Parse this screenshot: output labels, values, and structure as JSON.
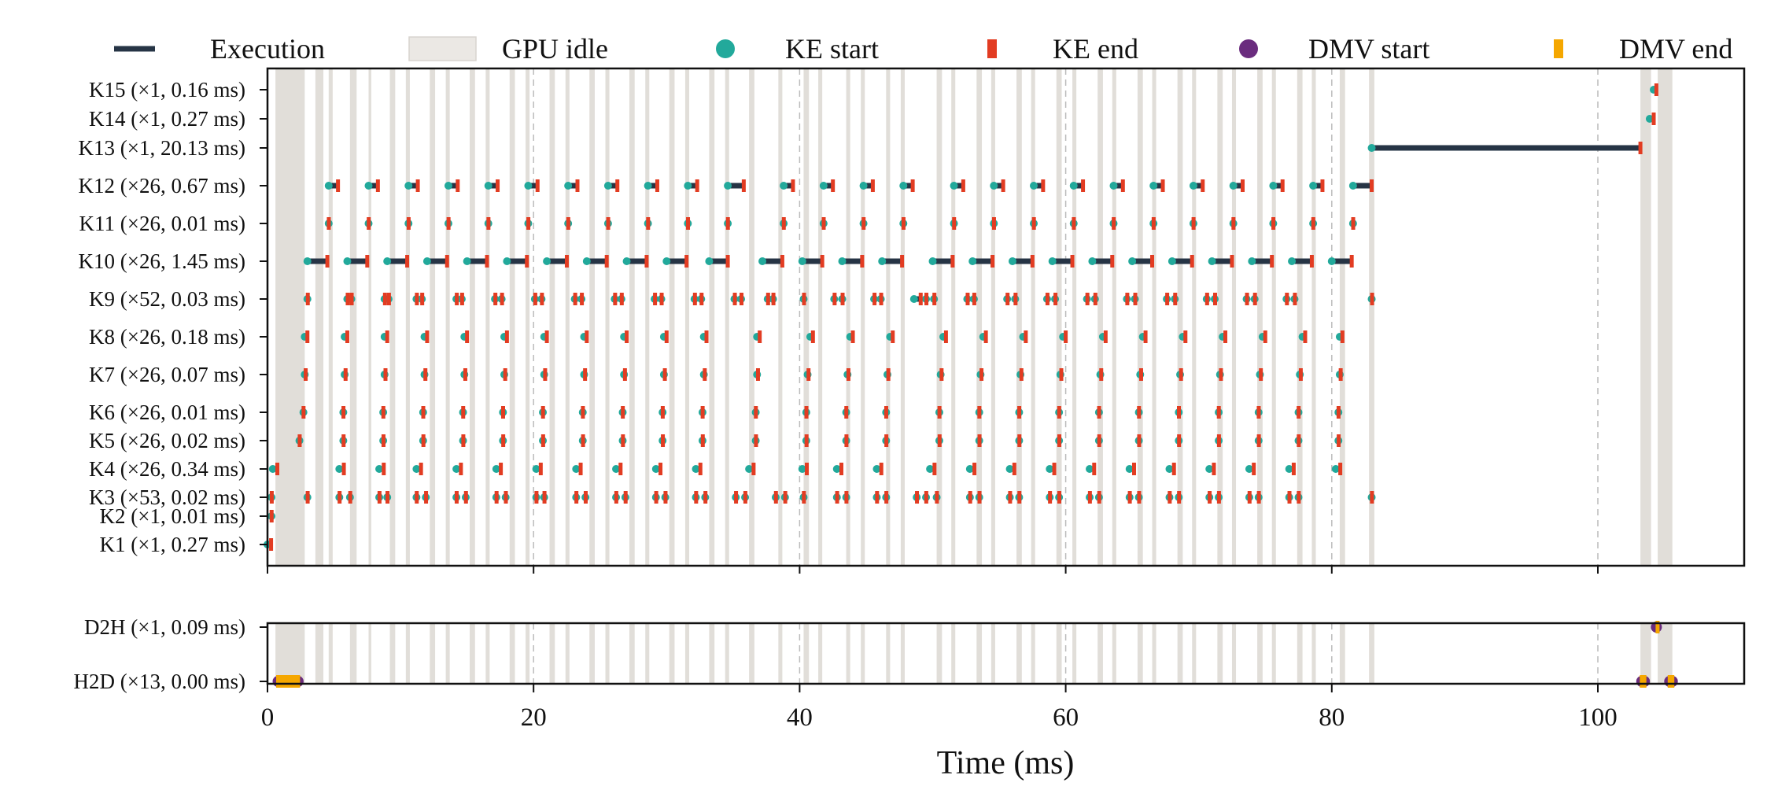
{
  "chart_data": {
    "type": "timeline",
    "xlabel": "Time (ms)",
    "xlim": [
      0,
      111
    ],
    "xticks": [
      0,
      20,
      40,
      60,
      80,
      100
    ],
    "grid": "vertical dashed at x ticks",
    "colors": {
      "execution": "#263445",
      "idle": "#dcd8d2",
      "idle_legend": "#ebe8e4",
      "ke_start": "#22a99b",
      "ke_end": "#e23c22",
      "dmv_start": "#6a2c7e",
      "dmv_end": "#f5a700",
      "axis": "#111111",
      "grid": "#bbbbbb"
    },
    "legend": {
      "location": "top",
      "items": [
        {
          "key": "execution",
          "label": "Execution",
          "marker": "line"
        },
        {
          "key": "idle",
          "label": "GPU idle",
          "marker": "patch"
        },
        {
          "key": "ke_start",
          "label": "KE start",
          "marker": "circle"
        },
        {
          "key": "ke_end",
          "label": "KE end",
          "marker": "bar"
        },
        {
          "key": "dmv_start",
          "label": "DMV start",
          "marker": "circle"
        },
        {
          "key": "dmv_end",
          "label": "DMV end",
          "marker": "bar"
        }
      ]
    },
    "idle_intervals_ms": [
      [
        0.6,
        2.8
      ],
      [
        3.6,
        4.2
      ],
      [
        4.6,
        4.9
      ],
      [
        6.2,
        6.7
      ],
      [
        7.6,
        7.8
      ],
      [
        9.2,
        9.6
      ],
      [
        10.4,
        10.7
      ],
      [
        12.2,
        12.6
      ],
      [
        13.4,
        13.7
      ],
      [
        15.2,
        15.6
      ],
      [
        16.4,
        16.7
      ],
      [
        18.2,
        18.6
      ],
      [
        19.4,
        19.7
      ],
      [
        21.2,
        21.6
      ],
      [
        22.4,
        22.7
      ],
      [
        24.2,
        24.6
      ],
      [
        25.4,
        25.7
      ],
      [
        27.2,
        27.6
      ],
      [
        28.4,
        28.7
      ],
      [
        30.2,
        30.6
      ],
      [
        31.4,
        31.7
      ],
      [
        33.2,
        33.6
      ],
      [
        34.4,
        34.7
      ],
      [
        36.2,
        36.6
      ],
      [
        38.4,
        38.7
      ],
      [
        40.3,
        40.7
      ],
      [
        41.4,
        41.7
      ],
      [
        43.5,
        43.8
      ],
      [
        44.6,
        44.9
      ],
      [
        46.5,
        46.8
      ],
      [
        47.6,
        47.9
      ],
      [
        50.3,
        50.7
      ],
      [
        51.4,
        51.7
      ],
      [
        53.3,
        53.7
      ],
      [
        54.4,
        54.7
      ],
      [
        56.3,
        56.7
      ],
      [
        57.4,
        57.7
      ],
      [
        59.3,
        59.7
      ],
      [
        60.5,
        60.8
      ],
      [
        62.4,
        62.8
      ],
      [
        63.5,
        63.8
      ],
      [
        65.4,
        65.8
      ],
      [
        66.5,
        66.8
      ],
      [
        68.4,
        68.8
      ],
      [
        69.5,
        69.8
      ],
      [
        71.4,
        71.8
      ],
      [
        72.5,
        72.8
      ],
      [
        74.4,
        74.8
      ],
      [
        75.5,
        75.8
      ],
      [
        77.4,
        77.8
      ],
      [
        78.5,
        78.8
      ],
      [
        80.6,
        81.0
      ],
      [
        82.8,
        83.2
      ],
      [
        103.2,
        104.0
      ],
      [
        104.5,
        105.6
      ]
    ],
    "panels": [
      {
        "name": "kernels",
        "rows": [
          {
            "label": "K15 (×1, 0.16 ms)",
            "starts": [
              104.2
            ],
            "ends": [
              104.4
            ]
          },
          {
            "label": "K14 (×1, 0.27 ms)",
            "starts": [
              103.9
            ],
            "ends": [
              104.2
            ]
          },
          {
            "label": "K13 (×1, 20.13 ms)",
            "starts": [
              83.0
            ],
            "ends": [
              103.2
            ]
          },
          {
            "label": "K12 (×26, 0.67 ms)",
            "starts": [
              4.6,
              7.6,
              10.6,
              13.6,
              16.6,
              19.6,
              22.6,
              25.6,
              28.6,
              31.6,
              34.6,
              38.8,
              41.8,
              44.8,
              47.8,
              51.6,
              54.6,
              57.6,
              60.6,
              63.6,
              66.6,
              69.6,
              72.6,
              75.6,
              78.6,
              81.6
            ],
            "ends": [
              5.3,
              8.3,
              11.3,
              14.3,
              17.3,
              20.3,
              23.3,
              26.3,
              29.3,
              32.3,
              35.8,
              39.5,
              42.5,
              45.5,
              48.5,
              52.3,
              55.3,
              58.3,
              61.3,
              64.3,
              67.3,
              70.3,
              73.3,
              76.3,
              79.3,
              83.0
            ]
          },
          {
            "label": "K11 (×26, 0.01 ms)",
            "starts": [
              4.6,
              7.6,
              10.6,
              13.6,
              16.6,
              19.6,
              22.6,
              25.6,
              28.6,
              31.6,
              34.6,
              38.8,
              41.8,
              44.8,
              47.8,
              51.6,
              54.6,
              57.6,
              60.6,
              63.6,
              66.6,
              69.6,
              72.6,
              75.6,
              78.6,
              81.6
            ],
            "ends": [
              4.61,
              7.61,
              10.61,
              13.61,
              16.61,
              19.61,
              22.61,
              25.61,
              28.61,
              31.61,
              34.61,
              38.81,
              41.81,
              44.81,
              47.81,
              51.61,
              54.61,
              57.61,
              60.61,
              63.61,
              66.61,
              69.61,
              72.61,
              75.61,
              78.61,
              81.61
            ]
          },
          {
            "label": "K10 (×26, 1.45 ms)",
            "starts": [
              3.0,
              6.0,
              9.0,
              12.0,
              15.0,
              18.0,
              21.0,
              24.0,
              27.0,
              30.0,
              33.2,
              37.2,
              40.2,
              43.2,
              46.2,
              50.0,
              53.0,
              56.0,
              59.0,
              62.0,
              65.0,
              68.0,
              71.0,
              74.0,
              77.0,
              80.0
            ],
            "ends": [
              4.5,
              7.5,
              10.5,
              13.5,
              16.5,
              19.5,
              22.5,
              25.5,
              28.5,
              31.5,
              34.6,
              38.7,
              41.7,
              44.7,
              47.7,
              51.5,
              54.5,
              57.5,
              60.5,
              63.5,
              66.5,
              69.5,
              72.5,
              75.5,
              78.5,
              81.5
            ]
          },
          {
            "label": "K9 (×52, 0.03 ms)",
            "starts": [
              3.0,
              6.0,
              6.3,
              8.8,
              9.1,
              11.2,
              11.6,
              14.2,
              14.6,
              17.1,
              17.6,
              20.1,
              20.6,
              23.1,
              23.6,
              26.1,
              26.6,
              29.1,
              29.6,
              32.1,
              32.6,
              35.1,
              35.6,
              37.6,
              38.0,
              40.3,
              42.6,
              43.2,
              45.6,
              46.1,
              48.6,
              49.5,
              50.1,
              52.6,
              53.1,
              55.6,
              56.2,
              58.6,
              59.2,
              61.6,
              62.2,
              64.6,
              65.2,
              67.6,
              68.2,
              70.6,
              71.2,
              73.6,
              74.2,
              76.6,
              77.2,
              83.0
            ],
            "ends": [
              3.03,
              6.03,
              6.33,
              8.83,
              9.13,
              11.23,
              11.63,
              14.23,
              14.63,
              17.13,
              17.63,
              20.13,
              20.63,
              23.13,
              23.63,
              26.13,
              26.63,
              29.13,
              29.63,
              32.13,
              32.63,
              35.13,
              35.63,
              37.63,
              38.03,
              40.33,
              42.63,
              43.23,
              45.63,
              46.13,
              49.1,
              49.53,
              50.13,
              52.63,
              53.13,
              55.63,
              56.23,
              58.63,
              59.23,
              61.63,
              62.23,
              64.63,
              65.23,
              67.63,
              68.23,
              70.63,
              71.23,
              73.63,
              74.23,
              76.63,
              77.23,
              83.03
            ]
          },
          {
            "label": "K8 (×26, 0.18 ms)",
            "starts": [
              2.8,
              5.8,
              8.8,
              11.8,
              14.8,
              17.8,
              20.8,
              23.8,
              26.8,
              29.8,
              32.8,
              36.8,
              40.8,
              43.8,
              46.8,
              50.8,
              53.8,
              56.8,
              59.8,
              62.8,
              65.8,
              68.8,
              71.8,
              74.8,
              77.8,
              80.6
            ],
            "ends": [
              3.0,
              6.0,
              9.0,
              12.0,
              15.0,
              18.0,
              21.0,
              24.0,
              27.0,
              30.0,
              33.0,
              37.0,
              41.0,
              44.0,
              47.0,
              51.0,
              54.0,
              57.0,
              60.0,
              63.0,
              66.0,
              69.0,
              72.0,
              75.0,
              78.0,
              80.8
            ]
          },
          {
            "label": "K7 (×26, 0.07 ms)",
            "starts": [
              2.8,
              5.8,
              8.8,
              11.8,
              14.8,
              17.8,
              20.8,
              23.8,
              26.8,
              29.8,
              32.8,
              36.8,
              40.6,
              43.6,
              46.6,
              50.6,
              53.6,
              56.6,
              59.6,
              62.6,
              65.6,
              68.6,
              71.6,
              74.6,
              77.6,
              80.6
            ],
            "ends": [
              2.87,
              5.87,
              8.87,
              11.87,
              14.87,
              17.87,
              20.87,
              23.87,
              26.87,
              29.87,
              32.87,
              36.87,
              40.67,
              43.67,
              46.67,
              50.67,
              53.67,
              56.67,
              59.67,
              62.67,
              65.67,
              68.67,
              71.67,
              74.67,
              77.67,
              80.67
            ]
          },
          {
            "label": "K6 (×26, 0.01 ms)",
            "starts": [
              2.7,
              5.7,
              8.7,
              11.7,
              14.7,
              17.7,
              20.7,
              23.7,
              26.7,
              29.7,
              32.7,
              36.7,
              40.5,
              43.5,
              46.5,
              50.5,
              53.5,
              56.5,
              59.5,
              62.5,
              65.5,
              68.5,
              71.5,
              74.5,
              77.5,
              80.5
            ],
            "ends": [
              2.71,
              5.71,
              8.71,
              11.71,
              14.71,
              17.71,
              20.71,
              23.71,
              26.71,
              29.71,
              32.71,
              36.71,
              40.51,
              43.51,
              46.51,
              50.51,
              53.51,
              56.51,
              59.51,
              62.51,
              65.51,
              68.51,
              71.51,
              74.51,
              77.51,
              80.51
            ]
          },
          {
            "label": "K5 (×26, 0.02 ms)",
            "starts": [
              2.4,
              5.7,
              8.7,
              11.7,
              14.7,
              17.7,
              20.7,
              23.7,
              26.7,
              29.7,
              32.7,
              36.7,
              40.5,
              43.5,
              46.5,
              50.5,
              53.5,
              56.5,
              59.5,
              62.5,
              65.5,
              68.5,
              71.5,
              74.5,
              77.5,
              80.5
            ],
            "ends": [
              2.42,
              5.72,
              8.72,
              11.72,
              14.72,
              17.72,
              20.72,
              23.72,
              26.72,
              29.72,
              32.72,
              36.72,
              40.52,
              43.52,
              46.52,
              50.52,
              53.52,
              56.52,
              59.52,
              62.52,
              65.52,
              68.52,
              71.52,
              74.52,
              77.52,
              80.52
            ]
          },
          {
            "label": "K4 (×26, 0.34 ms)",
            "starts": [
              0.4,
              5.4,
              8.4,
              11.2,
              14.2,
              17.2,
              20.2,
              23.2,
              26.2,
              29.2,
              32.2,
              36.2,
              40.2,
              42.8,
              45.8,
              49.8,
              52.8,
              55.8,
              58.8,
              61.8,
              64.8,
              67.8,
              70.8,
              73.8,
              76.8,
              80.3
            ],
            "ends": [
              0.74,
              5.74,
              8.74,
              11.54,
              14.54,
              17.54,
              20.54,
              23.54,
              26.54,
              29.54,
              32.54,
              36.54,
              40.54,
              43.14,
              46.14,
              50.14,
              53.14,
              56.14,
              59.14,
              62.14,
              65.14,
              68.14,
              71.14,
              74.14,
              77.14,
              80.64
            ]
          },
          {
            "label": "K3 (×53, 0.02 ms)",
            "starts": [
              0.3,
              3.0,
              5.4,
              6.2,
              8.4,
              9.0,
              11.2,
              11.9,
              14.2,
              14.9,
              17.2,
              17.9,
              20.2,
              20.8,
              23.2,
              23.9,
              26.2,
              26.9,
              29.2,
              29.9,
              32.2,
              32.9,
              35.2,
              35.9,
              38.2,
              38.9,
              40.3,
              42.8,
              43.5,
              45.8,
              46.5,
              48.8,
              49.5,
              50.3,
              52.8,
              53.5,
              55.8,
              56.5,
              58.8,
              59.5,
              61.8,
              62.5,
              64.8,
              65.5,
              67.8,
              68.5,
              70.8,
              71.5,
              73.8,
              74.5,
              76.8,
              77.5,
              83.0
            ],
            "ends": [
              0.32,
              3.02,
              5.42,
              6.22,
              8.42,
              9.02,
              11.22,
              11.92,
              14.22,
              14.92,
              17.22,
              17.92,
              20.22,
              20.82,
              23.22,
              23.92,
              26.22,
              26.92,
              29.22,
              29.92,
              32.22,
              32.92,
              35.22,
              35.92,
              38.22,
              38.92,
              40.32,
              42.82,
              43.52,
              45.82,
              46.52,
              48.82,
              49.52,
              50.32,
              52.82,
              53.52,
              55.82,
              56.52,
              58.82,
              59.52,
              61.82,
              62.52,
              64.82,
              65.52,
              67.82,
              68.52,
              70.82,
              71.52,
              73.82,
              74.52,
              76.82,
              77.52,
              83.02
            ]
          },
          {
            "label": "K2 (×1, 0.01 ms)",
            "starts": [
              0.3
            ],
            "ends": [
              0.31
            ]
          },
          {
            "label": "K1 (×1, 0.27 ms)",
            "starts": [
              0.0
            ],
            "ends": [
              0.27
            ]
          }
        ]
      },
      {
        "name": "transfers",
        "rows": [
          {
            "label": "D2H (×1, 0.09 ms)",
            "starts": [
              104.4
            ],
            "ends": [
              104.49
            ]
          },
          {
            "label": "H2D (×13, 0.00 ms)",
            "starts": [
              0.8,
              1.0,
              1.2,
              1.4,
              1.6,
              1.8,
              2.0,
              2.2,
              103.5,
              105.4,
              105.6,
              103.3,
              2.3
            ],
            "ends": [
              0.8,
              1.0,
              1.2,
              1.4,
              1.6,
              1.8,
              2.0,
              2.2,
              103.5,
              105.4,
              105.6,
              103.3,
              2.3
            ]
          }
        ]
      }
    ]
  }
}
